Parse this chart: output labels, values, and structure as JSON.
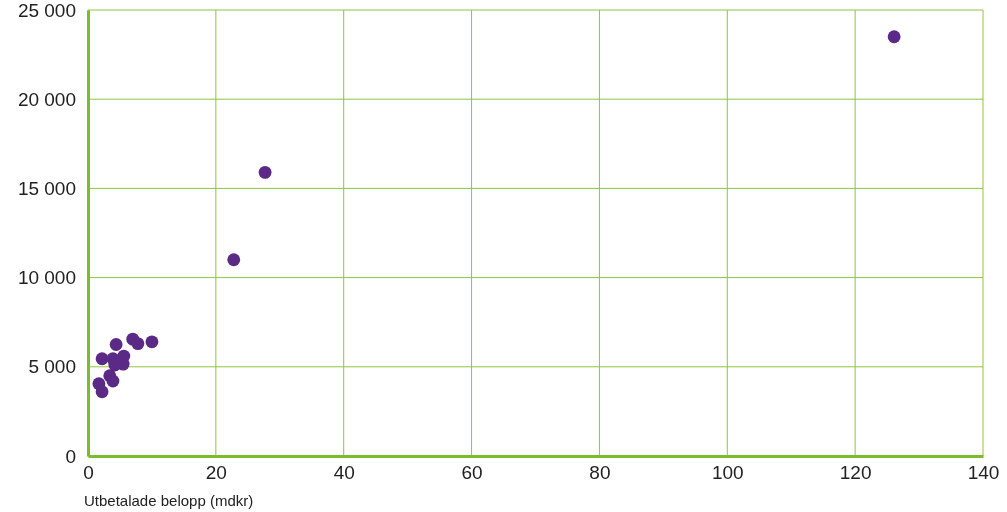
{
  "chart_data": {
    "type": "scatter",
    "xlabel": "Utbetalade belopp (mdkr)",
    "x": [
      2.2,
      4.4,
      3.9,
      5.6,
      7.0,
      7.8,
      10.0,
      5.5,
      4.5,
      3.4,
      3.9,
      1.7,
      2.2,
      4.2,
      22.8,
      27.7,
      126.1
    ],
    "series": [
      {
        "color": "#5b2a86",
        "values": [
          5450,
          6250,
          5450,
          5600,
          6550,
          6300,
          6400,
          5150,
          null,
          4500,
          4200,
          4050,
          3600,
          5100,
          11000,
          15900,
          23500
        ]
      }
    ],
    "xlim": [
      0,
      140
    ],
    "xticks": [
      0,
      20,
      40,
      60,
      80,
      100,
      120,
      140
    ],
    "ylim": [
      0,
      25000
    ],
    "yticks": [
      {
        "value": 0,
        "label": "0"
      },
      {
        "value": 5000,
        "label": "5 000"
      },
      {
        "value": 10000,
        "label": "10 000"
      },
      {
        "value": 15000,
        "label": "15 000"
      },
      {
        "value": 20000,
        "label": "20 000"
      },
      {
        "value": 25000,
        "label": "25 000"
      }
    ],
    "grid": true,
    "marker": "circle"
  }
}
